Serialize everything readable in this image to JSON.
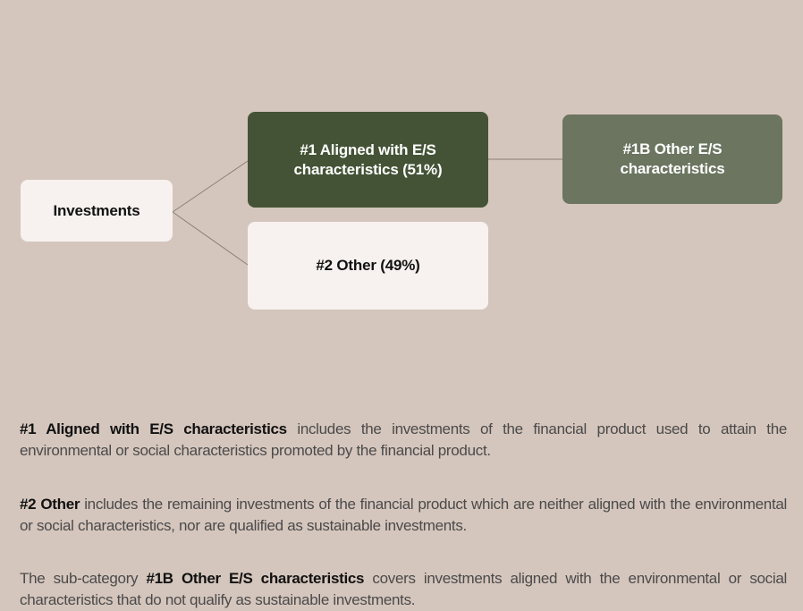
{
  "nodes": [
    {
      "label": "Investments"
    },
    {
      "label": "#1 Aligned with E/S characteristics (51%)"
    },
    {
      "label": "#1B Other E/S characteristics"
    },
    {
      "label": "#2 Other (49%)"
    }
  ],
  "paragraphs": [
    {
      "term": "#1 Aligned with E/S characteristics",
      "text": "includes the investments of the financial product used to attain the environmental or social characteristics promoted by the financial product."
    },
    {
      "term": "#2 Other",
      "text": "includes the remaining investments of the financial product which are neither aligned with the environmental or social characteristics, nor are qualified as sustainable investments."
    },
    {
      "lead": "The sub-category",
      "term": "#1B Other E/S characteristics",
      "text": "covers investments aligned with the environmental or social characteristics that do not qualify as sustainable investments."
    }
  ]
}
